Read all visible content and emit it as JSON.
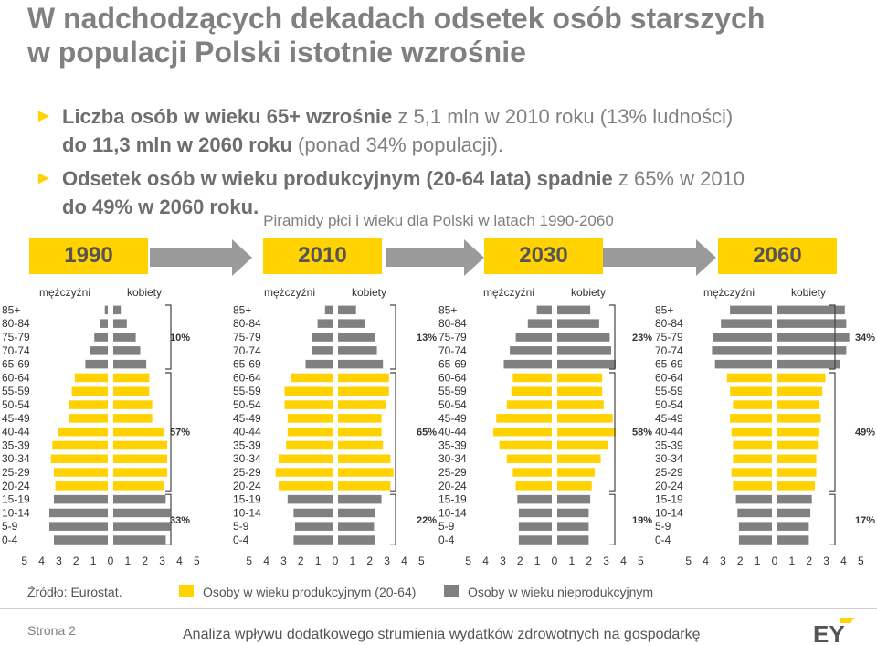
{
  "title_line1": "W nadchodzących dekadach odsetek osób starszych",
  "title_line2": "w populacji Polski istotnie wzrośnie",
  "bullets": [
    {
      "bold": "Liczba osób w wieku 65+ wzrośnie",
      "rest": " z 5,1 mln w 2010 roku (13% ludności)",
      "bold2": "do 11,3 mln w 2060 roku",
      "rest2": " (ponad 34% populacji)."
    },
    {
      "bold": "Odsetek osób w wieku produkcyjnym (20-64 lata) spadnie",
      "rest": " z 65% w 2010",
      "bold2": "",
      "rest2": "do 49% w 2060 roku."
    }
  ],
  "bullet_glyph": "►",
  "subtitle": "Piramidy płci i wieku dla Polski w latach 1990-2060",
  "years": [
    "1990",
    "2010",
    "2030",
    "2060"
  ],
  "gender_labels": {
    "male": "mężczyźni",
    "female": "kobiety"
  },
  "legend": {
    "source": "Źródło: Eurostat.",
    "productive": "Osoby w wieku produkcyjnym (20-64)",
    "nonproductive": "Osoby w wieku nieprodukcyjnym"
  },
  "colors": {
    "productive": "#ffd200",
    "nonproductive": "#808080",
    "accent": "#ffd200"
  },
  "footer": {
    "page": "Strona 2",
    "text": "Analiza wpływu dodatkowego strumienia wydatków zdrowotnych na gospodarkę",
    "logo": "EY"
  },
  "chart_data": [
    {
      "type": "bar",
      "year": "1990",
      "categories": [
        "85+",
        "80-84",
        "75-79",
        "70-74",
        "65-69",
        "60-64",
        "55-59",
        "50-54",
        "45-49",
        "40-44",
        "35-39",
        "30-34",
        "25-29",
        "20-24",
        "15-19",
        "10-14",
        "5-9",
        "0-4"
      ],
      "xticks": [
        "5",
        "4",
        "3",
        "2",
        "1",
        "0",
        "1",
        "2",
        "3",
        "4",
        "5"
      ],
      "xlim": [
        -5,
        5
      ],
      "series": [
        {
          "name": "mężczyźni",
          "values": [
            0.2,
            0.5,
            0.9,
            1.2,
            1.5,
            2.2,
            2.4,
            2.6,
            2.6,
            3.3,
            3.7,
            3.8,
            3.6,
            3.5,
            3.6,
            3.9,
            3.9,
            3.6
          ]
        },
        {
          "name": "kobiety",
          "values": [
            0.5,
            0.9,
            1.5,
            1.8,
            2.2,
            2.4,
            2.4,
            2.6,
            2.6,
            3.4,
            3.6,
            3.6,
            3.6,
            3.4,
            3.5,
            3.8,
            3.8,
            3.5
          ]
        }
      ],
      "shares": [
        {
          "label": "10%",
          "age": "75-79"
        },
        {
          "label": "57%",
          "age": "40-44"
        },
        {
          "label": "33%",
          "age": "10-14"
        }
      ]
    },
    {
      "type": "bar",
      "year": "2010",
      "categories": [
        "85+",
        "80-84",
        "75-79",
        "70-74",
        "65-69",
        "60-64",
        "55-59",
        "50-54",
        "45-49",
        "40-44",
        "35-39",
        "30-34",
        "25-29",
        "20-24",
        "15-19",
        "10-14",
        "5-9",
        "0-4"
      ],
      "xticks": [
        "5",
        "4",
        "3",
        "2",
        "1",
        "0",
        "1",
        "2",
        "3",
        "4",
        "5"
      ],
      "xlim": [
        -5,
        5
      ],
      "series": [
        {
          "name": "mężczyźni",
          "values": [
            0.5,
            1.0,
            1.4,
            1.4,
            1.8,
            2.8,
            3.2,
            3.2,
            3.0,
            3.0,
            3.1,
            3.6,
            3.8,
            3.6,
            3.0,
            2.6,
            2.5,
            2.6
          ]
        },
        {
          "name": "kobiety",
          "values": [
            1.2,
            1.8,
            2.5,
            2.6,
            3.0,
            3.4,
            3.4,
            3.2,
            2.9,
            2.9,
            3.0,
            3.5,
            3.7,
            3.5,
            2.9,
            2.5,
            2.4,
            2.5
          ]
        }
      ],
      "shares": [
        {
          "label": "13%",
          "age": "75-79"
        },
        {
          "label": "65%",
          "age": "40-44"
        },
        {
          "label": "22%",
          "age": "10-14"
        }
      ]
    },
    {
      "type": "bar",
      "year": "2030",
      "categories": [
        "85+",
        "80-84",
        "75-79",
        "70-74",
        "65-69",
        "60-64",
        "55-59",
        "50-54",
        "45-49",
        "40-44",
        "35-39",
        "30-34",
        "25-29",
        "20-24",
        "15-19",
        "10-14",
        "5-9",
        "0-4"
      ],
      "xticks": [
        "5",
        "4",
        "3",
        "2",
        "1",
        "0",
        "1",
        "2",
        "3",
        "4",
        "5"
      ],
      "xlim": [
        -5,
        5
      ],
      "series": [
        {
          "name": "mężczyźni",
          "values": [
            1.0,
            1.6,
            2.4,
            2.8,
            3.2,
            2.6,
            2.7,
            3.0,
            3.7,
            3.9,
            3.5,
            3.0,
            2.6,
            2.4,
            2.3,
            2.2,
            2.2,
            2.2
          ]
        },
        {
          "name": "kobiety",
          "values": [
            2.2,
            2.8,
            3.5,
            3.6,
            3.9,
            3.0,
            3.0,
            3.1,
            3.7,
            3.9,
            3.4,
            2.9,
            2.5,
            2.3,
            2.2,
            2.1,
            2.1,
            2.1
          ]
        }
      ],
      "shares": [
        {
          "label": "23%",
          "age": "75-79"
        },
        {
          "label": "58%",
          "age": "40-44"
        },
        {
          "label": "19%",
          "age": "10-14"
        }
      ]
    },
    {
      "type": "bar",
      "year": "2060",
      "categories": [
        "85+",
        "80-84",
        "75-79",
        "70-74",
        "65-69",
        "60-64",
        "55-59",
        "50-54",
        "45-49",
        "40-44",
        "35-39",
        "30-34",
        "25-29",
        "20-24",
        "15-19",
        "10-14",
        "5-9",
        "0-4"
      ],
      "xticks": [
        "5",
        "4",
        "3",
        "2",
        "1",
        "0",
        "1",
        "2",
        "3",
        "4",
        "5"
      ],
      "xlim": [
        -5,
        5
      ],
      "series": [
        {
          "name": "mężczyźni",
          "values": [
            2.8,
            3.4,
            3.9,
            4.0,
            3.8,
            3.0,
            2.8,
            2.6,
            2.8,
            2.7,
            2.6,
            2.6,
            2.7,
            2.6,
            2.4,
            2.3,
            2.2,
            2.2
          ]
        },
        {
          "name": "kobiety",
          "values": [
            4.5,
            4.6,
            4.8,
            4.6,
            4.2,
            3.2,
            3.0,
            2.8,
            2.9,
            2.8,
            2.7,
            2.6,
            2.6,
            2.5,
            2.3,
            2.2,
            2.1,
            2.1
          ]
        }
      ],
      "shares": [
        {
          "label": "34%",
          "age": "75-79"
        },
        {
          "label": "49%",
          "age": "40-44"
        },
        {
          "label": "17%",
          "age": "10-14"
        }
      ]
    }
  ]
}
